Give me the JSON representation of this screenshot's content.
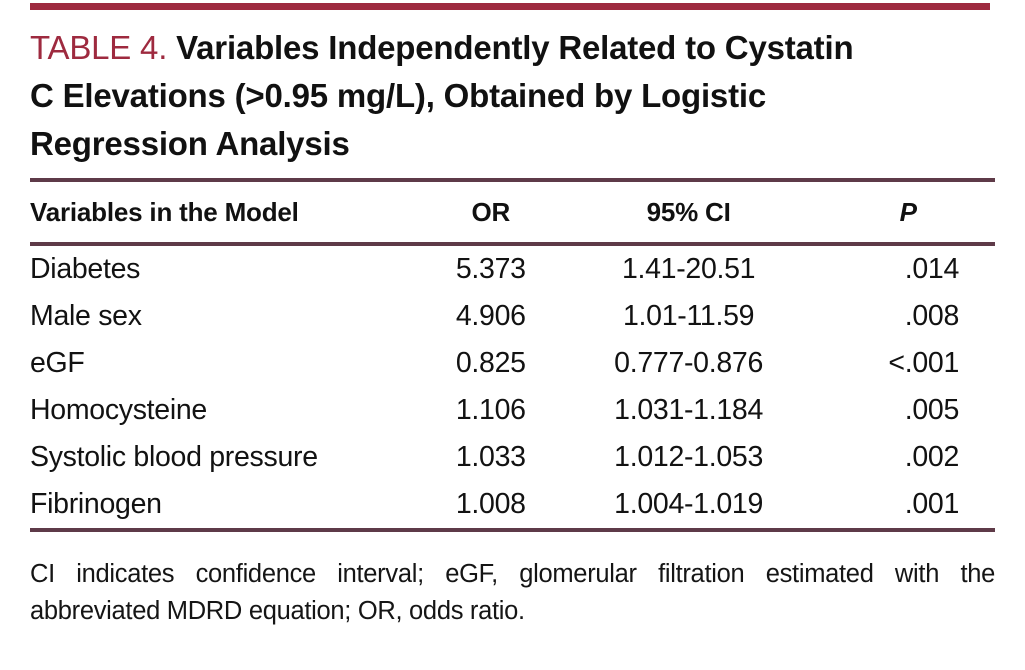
{
  "title": {
    "label": "TABLE 4.",
    "line1_rest": "Variables Independently Related to Cystatin",
    "line2": "C Elevations (>0.95 mg/L), Obtained by Logistic",
    "line3": "Regression Analysis"
  },
  "table": {
    "columns": {
      "variable": "Variables in the Model",
      "or": "OR",
      "ci": "95% CI",
      "p": "P"
    },
    "rows": [
      {
        "variable": "Diabetes",
        "or": "5.373",
        "ci": "1.41-20.51",
        "p": ".014"
      },
      {
        "variable": "Male sex",
        "or": "4.906",
        "ci": "1.01-11.59",
        "p": ".008"
      },
      {
        "variable": "eGF",
        "or": "0.825",
        "ci": "0.777-0.876",
        "p": "<.001"
      },
      {
        "variable": "Homocysteine",
        "or": "1.106",
        "ci": "1.031-1.184",
        "p": ".005"
      },
      {
        "variable": "Systolic blood pressure",
        "or": "1.033",
        "ci": "1.012-1.053",
        "p": ".002"
      },
      {
        "variable": "Fibrinogen",
        "or": "1.008",
        "ci": "1.004-1.019",
        "p": ".001"
      }
    ]
  },
  "footnote": {
    "line1": "CI indicates confidence interval; eGF, glomerular filtration estimated with the",
    "line2": "abbreviated MDRD equation; OR, odds ratio."
  },
  "colors": {
    "accent_red": "#9e2a3f",
    "rule": "#5e3a48",
    "text": "#121212",
    "background": "#ffffff"
  }
}
